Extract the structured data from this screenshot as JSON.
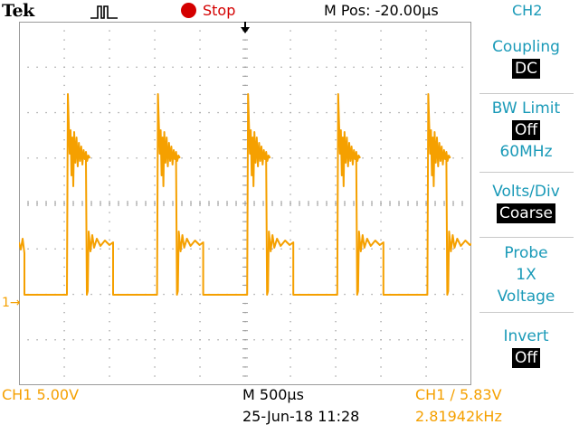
{
  "header": {
    "brand": "Tek",
    "run_state": "Stop",
    "m_pos": "M Pos: -20.00µs",
    "selected_channel": "CH2",
    "trigger_icon": "trigger-pulse-icon",
    "stop_icon": "red-dot-icon"
  },
  "side_menu": {
    "coupling": {
      "label": "Coupling",
      "value": "DC"
    },
    "bw_limit": {
      "label": "BW Limit",
      "value": "Off",
      "note": "60MHz"
    },
    "volts_div": {
      "label": "Volts/Div",
      "value": "Coarse"
    },
    "probe": {
      "label": "Probe",
      "value": "1X",
      "note": "Voltage"
    },
    "invert": {
      "label": "Invert",
      "value": "Off"
    }
  },
  "footer": {
    "ch1_scale": "CH1  5.00V",
    "timebase": "M 500µs",
    "datetime": "25-Jun-18 11:28",
    "trigger": "CH1 ∕ 5.83V",
    "frequency": "2.81942kHz"
  },
  "ground_marker": "1→",
  "colors": {
    "trace": "#f5a000",
    "menu_text": "#1a9ab8",
    "stop": "#d40000",
    "grid": "#9a9a9a"
  }
}
